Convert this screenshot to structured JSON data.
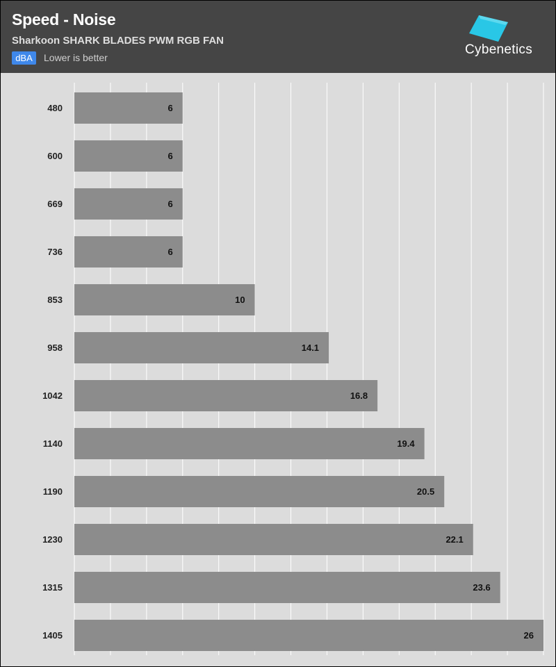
{
  "header": {
    "title": "Speed - Noise",
    "subtitle": "Sharkoon SHARK BLADES PWM RGB FAN",
    "unit_badge": "dBA",
    "note": "Lower is better",
    "brand": "Cybenetics"
  },
  "colors": {
    "header_bg": "#454545",
    "plot_bg": "#dcdcdc",
    "bar": "#8c8c8c",
    "badge": "#3f88ea",
    "logo": "#29c7e6",
    "gridline": "#ffffff"
  },
  "chart_data": {
    "type": "bar",
    "orientation": "horizontal",
    "title": "Speed - Noise",
    "subtitle": "Sharkoon SHARK BLADES PWM RGB FAN",
    "unit": "dBA",
    "categories": [
      "480",
      "600",
      "669",
      "736",
      "853",
      "958",
      "1042",
      "1140",
      "1190",
      "1230",
      "1315",
      "1405"
    ],
    "values": [
      6,
      6,
      6,
      6,
      10,
      14.1,
      16.8,
      19.4,
      20.5,
      22.1,
      23.6,
      26
    ],
    "xlim": [
      0,
      26
    ],
    "grid": true,
    "legend": "none"
  }
}
